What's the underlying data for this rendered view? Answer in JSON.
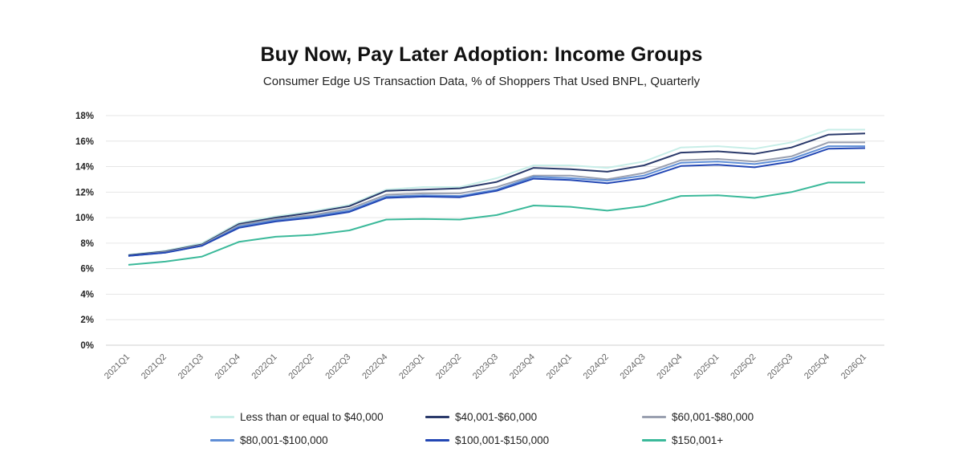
{
  "chart_data": {
    "type": "line",
    "title": "Buy Now, Pay Later Adoption: Income Groups",
    "subtitle": "Consumer Edge US Transaction Data, % of Shoppers That Used BNPL, Quarterly",
    "categories": [
      "2021Q1",
      "2021Q2",
      "2021Q3",
      "2021Q4",
      "2022Q1",
      "2022Q2",
      "2022Q3",
      "2022Q4",
      "2023Q1",
      "2023Q2",
      "2023Q3",
      "2023Q4",
      "2024Q1",
      "2024Q2",
      "2024Q3",
      "2024Q4",
      "2025Q1",
      "2025Q2",
      "2025Q3",
      "2025Q4",
      "2026Q1"
    ],
    "ylim": [
      0,
      18
    ],
    "yticks": [
      "0%",
      "2%",
      "4%",
      "6%",
      "8%",
      "10%",
      "12%",
      "14%",
      "16%",
      "18%"
    ],
    "grid": true,
    "legend_position": "bottom",
    "series": [
      {
        "name": "Less than or equal to $40,000",
        "color": "#c8eee8",
        "values": [
          7.1,
          7.4,
          8.0,
          9.6,
          10.1,
          10.5,
          11.0,
          12.2,
          12.4,
          12.4,
          13.1,
          14.1,
          14.1,
          13.9,
          14.4,
          15.5,
          15.6,
          15.4,
          15.9,
          16.9,
          16.9
        ]
      },
      {
        "name": "$40,001-$60,000",
        "color": "#2b3a6b",
        "values": [
          7.05,
          7.35,
          7.9,
          9.5,
          10.0,
          10.4,
          10.9,
          12.1,
          12.2,
          12.3,
          12.8,
          13.9,
          13.8,
          13.6,
          14.1,
          15.1,
          15.2,
          15.0,
          15.5,
          16.5,
          16.6
        ]
      },
      {
        "name": "$60,001-$80,000",
        "color": "#9aa0b0",
        "values": [
          7.0,
          7.3,
          7.85,
          9.4,
          9.9,
          10.2,
          10.7,
          11.8,
          11.9,
          11.9,
          12.4,
          13.3,
          13.3,
          13.0,
          13.5,
          14.5,
          14.6,
          14.4,
          14.8,
          15.9,
          15.9
        ]
      },
      {
        "name": "$80,001-$100,000",
        "color": "#5f8ed6",
        "values": [
          7.0,
          7.25,
          7.8,
          9.3,
          9.8,
          10.1,
          10.55,
          11.65,
          11.75,
          11.7,
          12.2,
          13.2,
          13.1,
          12.9,
          13.3,
          14.3,
          14.4,
          14.2,
          14.6,
          15.6,
          15.6
        ]
      },
      {
        "name": "$100,001-$150,000",
        "color": "#2347b4",
        "values": [
          7.0,
          7.25,
          7.8,
          9.2,
          9.7,
          10.0,
          10.45,
          11.55,
          11.65,
          11.6,
          12.1,
          13.05,
          12.95,
          12.7,
          13.1,
          14.05,
          14.15,
          13.95,
          14.4,
          15.4,
          15.45
        ]
      },
      {
        "name": "$150,001+",
        "color": "#3bb99a",
        "values": [
          6.3,
          6.55,
          6.95,
          8.1,
          8.5,
          8.65,
          9.0,
          9.85,
          9.9,
          9.85,
          10.2,
          10.95,
          10.85,
          10.55,
          10.9,
          11.7,
          11.75,
          11.55,
          12.0,
          12.75,
          12.75
        ]
      }
    ]
  }
}
